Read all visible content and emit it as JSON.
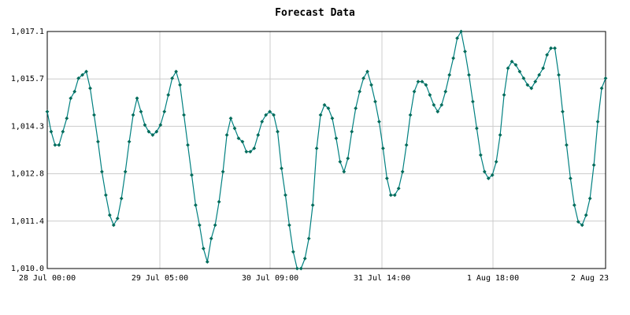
{
  "chart_data": {
    "type": "line",
    "title": "Forecast Data",
    "xlabel": "",
    "ylabel": "",
    "ylim": [
      1010.0,
      1017.1
    ],
    "y_ticks": [
      "1,010.0",
      "1,011.4",
      "1,012.8",
      "1,014.3",
      "1,015.7",
      "1,017.1"
    ],
    "x_ticks": [
      "28 Jul 00:00",
      "29 Jul 05:00",
      "30 Jul 09:00",
      "31 Jul 14:00",
      "1 Aug 18:00",
      "2 Aug 23"
    ],
    "grid": true,
    "colors": {
      "line": "#008080",
      "marker": "#006b5a",
      "grid": "#cccccc",
      "background": "#ffffff"
    },
    "series": [
      {
        "values": [
          1014.7,
          1014.1,
          1013.7,
          1013.7,
          1014.1,
          1014.5,
          1015.1,
          1015.3,
          1015.7,
          1015.8,
          1015.9,
          1015.4,
          1014.6,
          1013.8,
          1012.9,
          1012.2,
          1011.6,
          1011.3,
          1011.5,
          1012.1,
          1012.9,
          1013.8,
          1014.6,
          1015.1,
          1014.7,
          1014.3,
          1014.1,
          1014.0,
          1014.1,
          1014.3,
          1014.7,
          1015.2,
          1015.7,
          1015.9,
          1015.5,
          1014.6,
          1013.7,
          1012.8,
          1011.9,
          1011.3,
          1010.6,
          1010.2,
          1010.9,
          1011.3,
          1012.0,
          1012.9,
          1014.0,
          1014.5,
          1014.2,
          1013.9,
          1013.8,
          1013.5,
          1013.5,
          1013.6,
          1014.0,
          1014.4,
          1014.6,
          1014.7,
          1014.6,
          1014.1,
          1013.0,
          1012.2,
          1011.3,
          1010.5,
          1010.0,
          1010.0,
          1010.3,
          1010.9,
          1011.9,
          1013.6,
          1014.6,
          1014.9,
          1014.8,
          1014.5,
          1013.9,
          1013.2,
          1012.9,
          1013.3,
          1014.1,
          1014.8,
          1015.3,
          1015.7,
          1015.9,
          1015.5,
          1015.0,
          1014.4,
          1013.6,
          1012.7,
          1012.2,
          1012.2,
          1012.4,
          1012.9,
          1013.7,
          1014.6,
          1015.3,
          1015.6,
          1015.6,
          1015.5,
          1015.2,
          1014.9,
          1014.7,
          1014.9,
          1015.3,
          1015.8,
          1016.3,
          1016.9,
          1017.1,
          1016.5,
          1015.8,
          1015.0,
          1014.2,
          1013.4,
          1012.9,
          1012.7,
          1012.8,
          1013.2,
          1014.0,
          1015.2,
          1016.0,
          1016.2,
          1016.1,
          1015.9,
          1015.7,
          1015.5,
          1015.4,
          1015.6,
          1015.8,
          1016.0,
          1016.4,
          1016.6,
          1016.6,
          1015.8,
          1014.7,
          1013.7,
          1012.7,
          1011.9,
          1011.4,
          1011.3,
          1011.6,
          1012.1,
          1013.1,
          1014.4,
          1015.4,
          1015.7
        ]
      }
    ]
  }
}
